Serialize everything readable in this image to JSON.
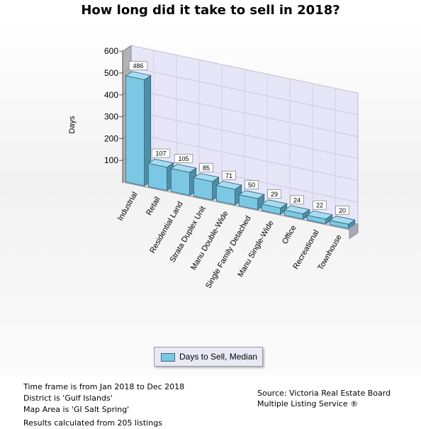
{
  "title": "How long did it take to sell in 2018?",
  "chart_data": {
    "type": "bar",
    "title": "How long did it take to sell in 2018?",
    "ylabel": "Days",
    "xlabel": "",
    "ylim": [
      0,
      600
    ],
    "yticks": [
      100,
      200,
      300,
      400,
      500,
      600
    ],
    "categories": [
      "Industrial",
      "Retail",
      "Residential Land",
      "Strata Duplex Unit",
      "Manu Double-Wide",
      "Single Family Detached",
      "Manu Single-Wide",
      "Office",
      "Recreational",
      "Townhouse"
    ],
    "series": [
      {
        "name": "Days to Sell, Median",
        "values": [
          486,
          107,
          105,
          85,
          71,
          50,
          29,
          24,
          22,
          20
        ]
      }
    ],
    "bar_color": "#7cc8e4",
    "grid": true,
    "legend_position": "bottom"
  },
  "legend": {
    "label": "Days to Sell, Median"
  },
  "footer": {
    "lines": [
      "Time frame is from Jan 2018 to Dec 2018",
      "District is 'Gulf Islands'",
      "Map Area is 'GI Salt Spring'"
    ],
    "listings": "Results calculated from 205 listings",
    "source_line1": "Source: Victoria Real Estate Board",
    "source_line2": "Multiple Listing Service ®"
  }
}
